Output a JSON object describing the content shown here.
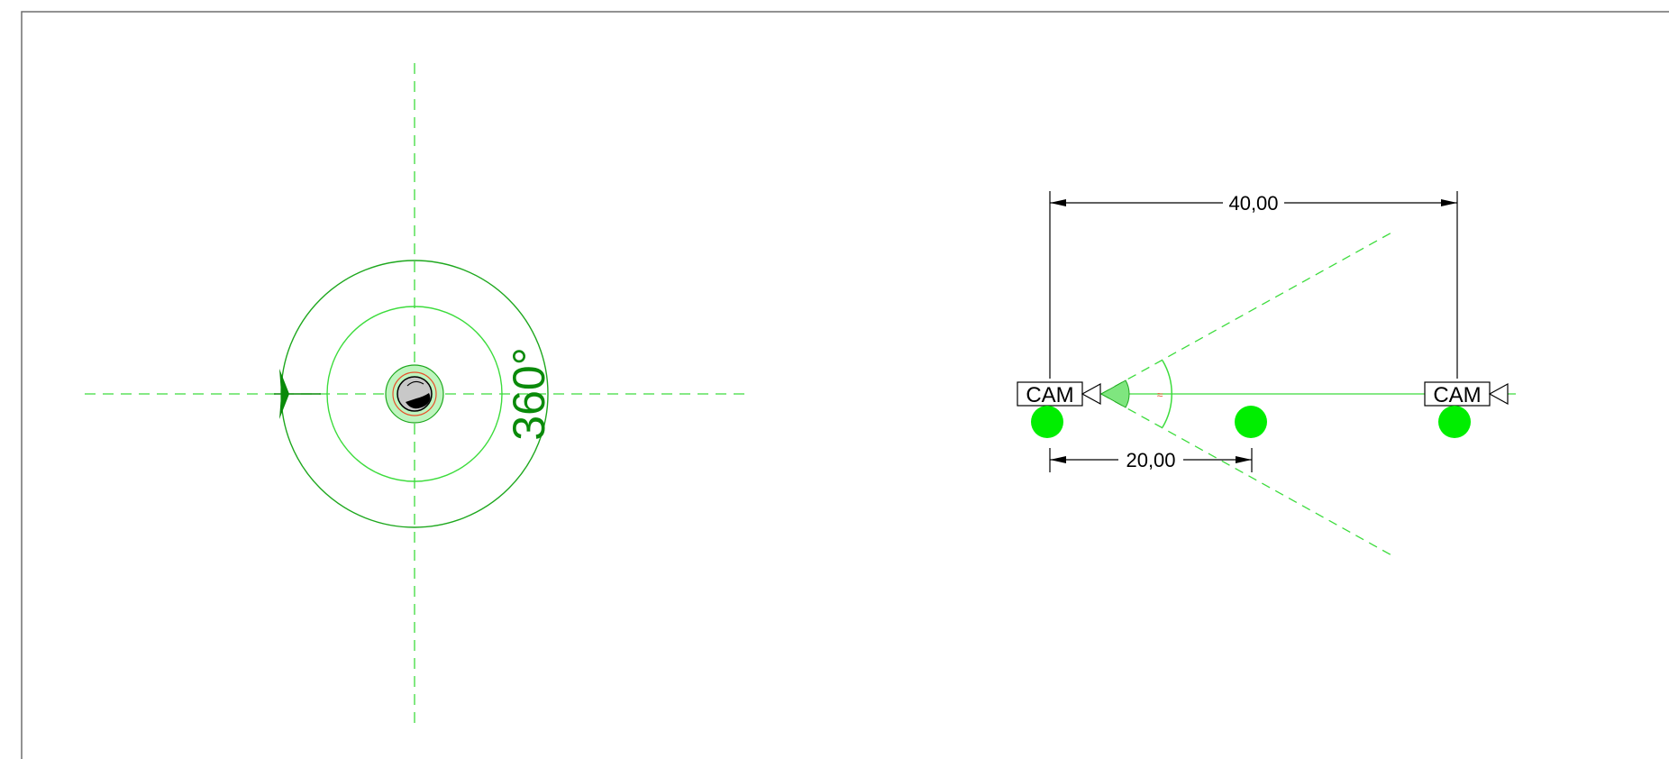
{
  "drawing": {
    "left_view": {
      "angle_label": "360°"
    },
    "right_view": {
      "dimension_top": "40,00",
      "dimension_bottom": "20,00",
      "cameras": [
        {
          "label": "CAM"
        },
        {
          "label": "CAM"
        }
      ],
      "fov_marker": "≈"
    }
  },
  "colors": {
    "frame": "#6e6e6e",
    "dashed_green": "#3ddc3d",
    "circle_green": "#1ea81e",
    "dot_green": "#00ee00",
    "dimension": "#000000",
    "accent_red": "#e8502a"
  },
  "icons": {
    "camera": "camera-triangle-icon",
    "dimension_arrow": "arrowhead-icon",
    "center_sensor": "sensor-head-icon"
  }
}
